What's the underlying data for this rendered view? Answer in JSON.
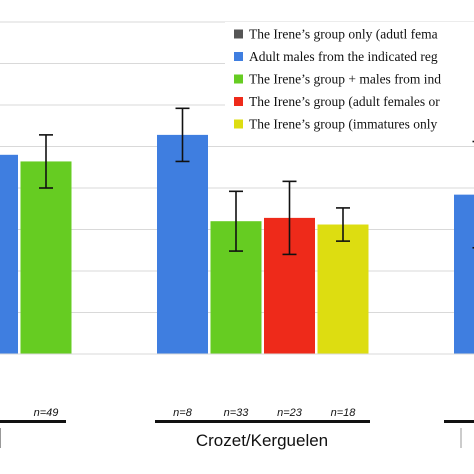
{
  "chart_data": {
    "type": "bar",
    "title": "",
    "xlabel": "",
    "ylabel": "",
    "ylim": [
      0,
      100
    ],
    "grid": true,
    "legend_placement": "top-right",
    "series": [
      {
        "name": "The Irene’s group only (adutl fema",
        "color": "#555555"
      },
      {
        "name": "Adult males from the indicated reg",
        "color": "#3f7ee0"
      },
      {
        "name": "The Irene’s group + males from ind",
        "color": "#66cc22"
      },
      {
        "name": "The Irene’s group (adult females or",
        "color": "#ee2a1a"
      },
      {
        "name": "The Irene’s group (immatures only",
        "color": "#dddd11"
      }
    ],
    "bars": [
      {
        "group": 0,
        "series": 1,
        "value": 60,
        "err": null,
        "n": ""
      },
      {
        "group": 0,
        "series": 2,
        "value": 58,
        "err": 8,
        "n": "n=49"
      },
      {
        "group": 1,
        "series": 1,
        "value": 66,
        "err": 8,
        "n": "n=8"
      },
      {
        "group": 1,
        "series": 2,
        "value": 40,
        "err": 9,
        "n": "n=33"
      },
      {
        "group": 1,
        "series": 3,
        "value": 41,
        "err": 11,
        "n": "n=23"
      },
      {
        "group": 1,
        "series": 4,
        "value": 39,
        "err": 5,
        "n": "n=18"
      },
      {
        "group": 2,
        "series": 1,
        "value": 48,
        "err": 16,
        "n": ""
      }
    ],
    "groups": [
      "",
      "Crozet/Kerguelen",
      ""
    ]
  }
}
